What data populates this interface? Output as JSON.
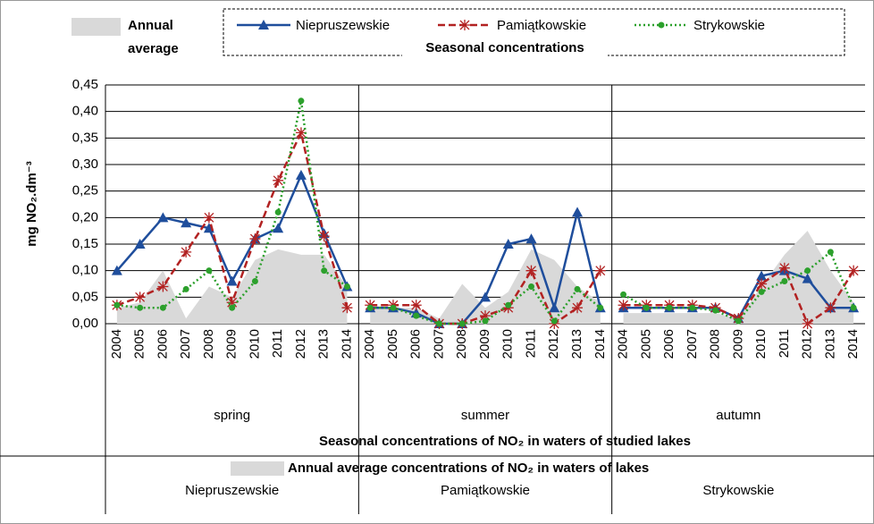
{
  "chart_data": {
    "type": "line",
    "y_label": "mg NO₂.dm⁻³",
    "x_label": "Seasonal concentrations of NO₂ in waters of studied lakes",
    "area_caption": "Annual average concentrations of NO₂ in waters of lakes",
    "legend_caption": "Seasonal concentrations",
    "groups": [
      "spring",
      "summer",
      "autumn"
    ],
    "categories": [
      "2004",
      "2005",
      "2006",
      "2007",
      "2008",
      "2009",
      "2010",
      "2011",
      "2012",
      "2013",
      "2014",
      "2004",
      "2005",
      "2006",
      "2007",
      "2008",
      "2009",
      "2010",
      "2011",
      "2012",
      "2013",
      "2014",
      "2004",
      "2005",
      "2006",
      "2007",
      "2008",
      "2009",
      "2010",
      "2011",
      "2012",
      "2013",
      "2014"
    ],
    "area": {
      "name": "Annual average",
      "color": "#d9d9d9",
      "values": [
        0.03,
        0.04,
        0.1,
        0.01,
        0.07,
        0.05,
        0.12,
        0.14,
        0.13,
        0.13,
        0.07,
        0.035,
        0.03,
        0.03,
        0.01,
        0.075,
        0.03,
        0.06,
        0.14,
        0.12,
        0.07,
        0.04,
        0.02,
        0.02,
        0.02,
        0.02,
        0.02,
        0.01,
        0.07,
        0.13,
        0.175,
        0.1,
        0.04
      ]
    },
    "series": [
      {
        "name": "Niepruszewskie",
        "color": "#1f4e9c",
        "dash": "solid",
        "marker": "triangle",
        "values": [
          0.1,
          0.15,
          0.2,
          0.19,
          0.18,
          0.08,
          0.16,
          0.18,
          0.28,
          0.17,
          0.07,
          0.03,
          0.03,
          0.02,
          0.0,
          0.0,
          0.05,
          0.15,
          0.16,
          0.03,
          0.21,
          0.03,
          0.03,
          0.03,
          0.03,
          0.03,
          0.03,
          0.01,
          0.09,
          0.1,
          0.085,
          0.03,
          0.03
        ]
      },
      {
        "name": "Pamiątkowskie",
        "color": "#b22222",
        "dash": "dashed",
        "marker": "asterisk",
        "values": [
          0.035,
          0.05,
          0.07,
          0.135,
          0.2,
          0.04,
          0.16,
          0.27,
          0.36,
          0.165,
          0.03,
          0.035,
          0.035,
          0.035,
          0.0,
          0.0,
          0.015,
          0.03,
          0.1,
          0.0,
          0.03,
          0.1,
          0.035,
          0.035,
          0.035,
          0.035,
          0.03,
          0.01,
          0.075,
          0.105,
          0.0,
          0.03,
          0.1
        ]
      },
      {
        "name": "Strykowskie",
        "color": "#2ca02c",
        "dash": "dotted",
        "marker": "circle",
        "values": [
          0.035,
          0.03,
          0.03,
          0.065,
          0.1,
          0.03,
          0.08,
          0.21,
          0.42,
          0.1,
          0.07,
          0.03,
          0.03,
          0.015,
          0.0,
          0.0,
          0.005,
          0.035,
          0.07,
          0.005,
          0.065,
          0.03,
          0.055,
          0.03,
          0.03,
          0.03,
          0.025,
          0.005,
          0.06,
          0.08,
          0.1,
          0.135,
          0.03
        ]
      }
    ],
    "ylim": [
      0,
      0.45
    ],
    "yticks": [
      {
        "value": 0,
        "label": "0,00"
      },
      {
        "value": 0.05,
        "label": "0,05"
      },
      {
        "value": 0.1,
        "label": "0,10"
      },
      {
        "value": 0.15,
        "label": "0,15"
      },
      {
        "value": 0.2,
        "label": "0,20"
      },
      {
        "value": 0.25,
        "label": "0,25"
      },
      {
        "value": 0.3,
        "label": "0,30"
      },
      {
        "value": 0.35,
        "label": "0,35"
      },
      {
        "value": 0.4,
        "label": "0,40"
      },
      {
        "value": 0.45,
        "label": "0,45"
      }
    ],
    "grid": true
  }
}
